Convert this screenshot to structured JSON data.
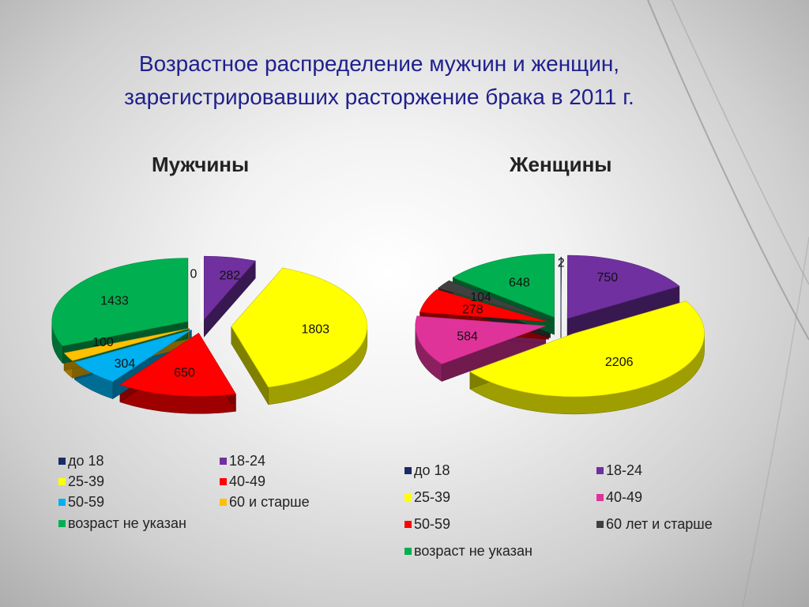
{
  "title_line1": "Возрастное распределение мужчин и женщин,",
  "title_line2": "зарегистрировавших расторжение брака в 2011 г.",
  "chart_data": [
    {
      "type": "pie",
      "title": "Мужчины",
      "labels": [
        "до 18",
        "18-24",
        "25-39",
        "40-49",
        "50-59",
        "60 и старше",
        "возраст не указан"
      ],
      "values": [
        0,
        282,
        1803,
        650,
        304,
        100,
        1433
      ],
      "colors": [
        "#1c2a66",
        "#7030a0",
        "#ffff00",
        "#ff0000",
        "#00b0f0",
        "#ffc000",
        "#00b050"
      ],
      "legend_position": "bottom"
    },
    {
      "type": "pie",
      "title": "Женщины",
      "labels": [
        "до 18",
        "18-24",
        "25-39",
        "40-49",
        "50-59",
        "60 лет и старше",
        "возраст не указан"
      ],
      "values": [
        2,
        750,
        2206,
        584,
        278,
        104,
        648
      ],
      "colors": [
        "#1c2a66",
        "#7030a0",
        "#ffff00",
        "#e0339a",
        "#ff0000",
        "#404040",
        "#00b050"
      ],
      "legend_position": "bottom"
    }
  ]
}
